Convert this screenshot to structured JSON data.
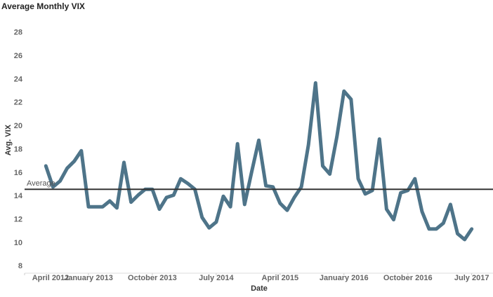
{
  "chart_data": {
    "type": "line",
    "title": "Average Monthly VIX",
    "x_label": "Date",
    "y_label": "Avg. VIX",
    "x": [
      "2012-07",
      "2012-08",
      "2012-09",
      "2012-10",
      "2012-11",
      "2012-12",
      "2013-01",
      "2013-02",
      "2013-03",
      "2013-04",
      "2013-05",
      "2013-06",
      "2013-07",
      "2013-08",
      "2013-09",
      "2013-10",
      "2013-11",
      "2013-12",
      "2014-01",
      "2014-02",
      "2014-03",
      "2014-04",
      "2014-05",
      "2014-06",
      "2014-07",
      "2014-08",
      "2014-09",
      "2014-10",
      "2014-11",
      "2014-12",
      "2015-01",
      "2015-02",
      "2015-03",
      "2015-04",
      "2015-05",
      "2015-06",
      "2015-07",
      "2015-08",
      "2015-09",
      "2015-10",
      "2015-11",
      "2015-12",
      "2016-01",
      "2016-02",
      "2016-03",
      "2016-04",
      "2016-05",
      "2016-06",
      "2016-07",
      "2016-08",
      "2016-09",
      "2016-10",
      "2016-11",
      "2016-12",
      "2017-01",
      "2017-02",
      "2017-03",
      "2017-04",
      "2017-05",
      "2017-06",
      "2017-07"
    ],
    "series": [
      {
        "name": "Avg. VIX",
        "color": "#4e7489",
        "values": [
          16.6,
          14.8,
          15.3,
          16.4,
          17.0,
          17.9,
          13.1,
          13.1,
          13.1,
          13.6,
          13.0,
          16.9,
          13.5,
          14.1,
          14.6,
          14.6,
          12.9,
          13.9,
          14.1,
          15.5,
          15.1,
          14.6,
          12.2,
          11.3,
          11.8,
          14.0,
          13.1,
          18.5,
          13.3,
          16.1,
          18.8,
          14.9,
          14.8,
          13.4,
          12.8,
          13.9,
          14.8,
          18.4,
          23.7,
          16.6,
          15.9,
          19.1,
          23.0,
          22.3,
          15.5,
          14.2,
          14.5,
          18.9,
          12.9,
          12.0,
          14.3,
          14.5,
          15.5,
          12.7,
          11.2,
          11.2,
          11.7,
          13.3,
          10.8,
          10.3,
          11.2
        ]
      }
    ],
    "reference_line": {
      "label": "Average",
      "value": 14.6,
      "color": "#333333"
    },
    "xlim": [
      "2012-04",
      "2017-10"
    ],
    "xticks": [
      {
        "value": "2012-04",
        "label": "April 2012"
      },
      {
        "value": "2013-01",
        "label": "January 2013"
      },
      {
        "value": "2013-10",
        "label": "October 2013"
      },
      {
        "value": "2014-07",
        "label": "July 2014"
      },
      {
        "value": "2015-04",
        "label": "April 2015"
      },
      {
        "value": "2016-01",
        "label": "January 2016"
      },
      {
        "value": "2016-10",
        "label": "October 2016"
      },
      {
        "value": "2017-07",
        "label": "July 2017"
      }
    ],
    "ylim": [
      7.3,
      29
    ],
    "yticks": [
      8,
      10,
      12,
      14,
      16,
      18,
      20,
      22,
      24,
      26,
      28
    ],
    "grid": false
  }
}
